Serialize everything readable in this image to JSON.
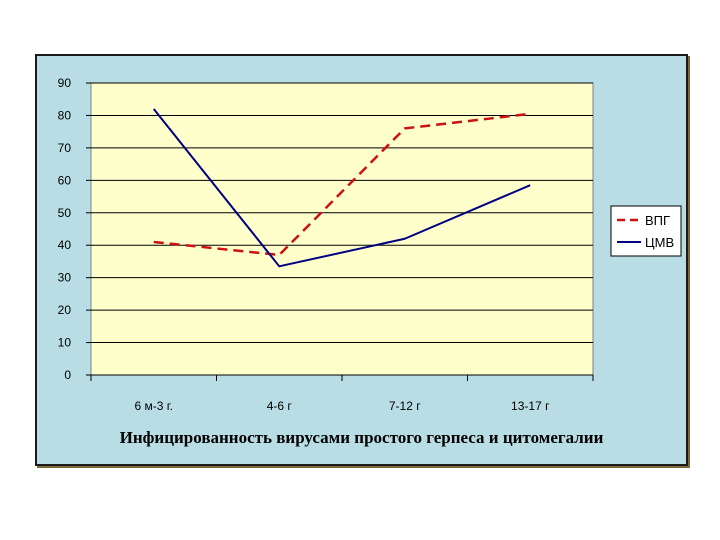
{
  "chart_data": {
    "type": "line",
    "title": "Инфицированность вирусами простого герпеса и цитомегалии",
    "categories": [
      "6 м-3 г.",
      "4-6 г",
      "7-12 г",
      "13-17 г"
    ],
    "series": [
      {
        "name": "ВПГ",
        "values": [
          41,
          37,
          76,
          80.5
        ],
        "color": "#cc1111",
        "style": "dashed"
      },
      {
        "name": "ЦМВ",
        "values": [
          82,
          33.5,
          42,
          58.5
        ],
        "color": "#000080",
        "style": "solid"
      }
    ],
    "yticks": [
      0,
      10,
      20,
      30,
      40,
      50,
      60,
      70,
      80,
      90
    ],
    "ylim": [
      0,
      90
    ],
    "grid": true,
    "plot_background": "#ffffcc",
    "legend": "right"
  }
}
